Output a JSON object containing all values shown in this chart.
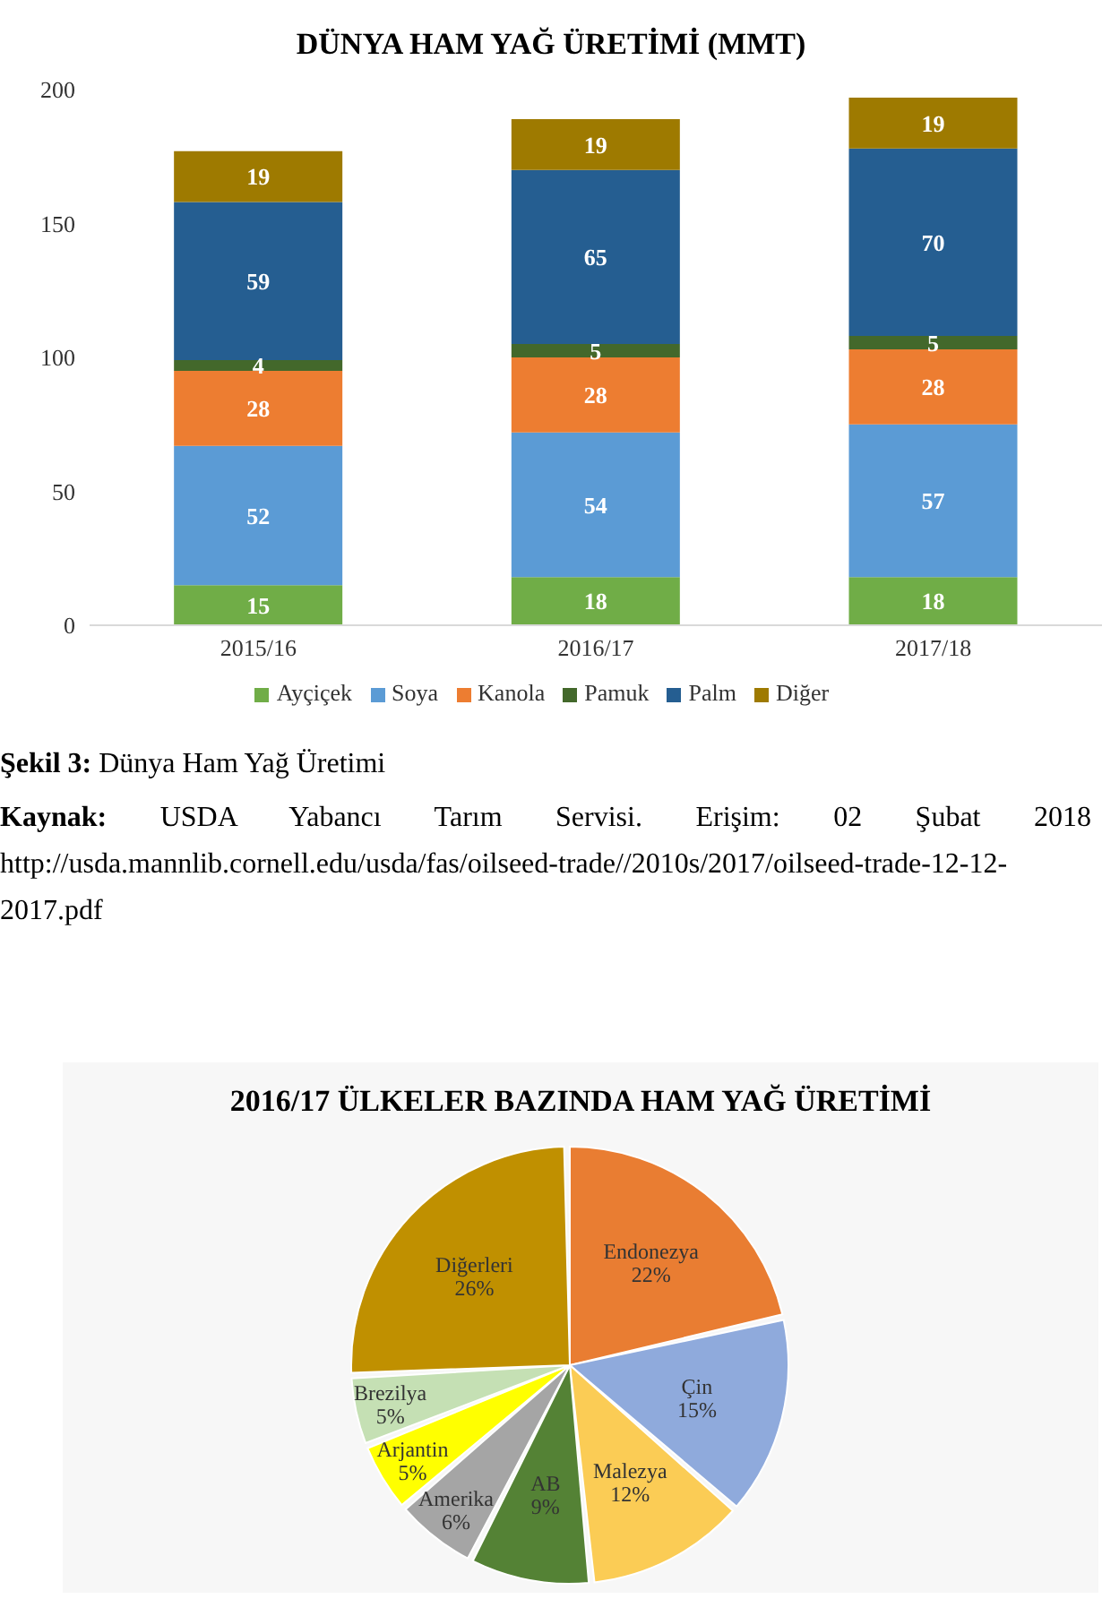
{
  "chart_data": [
    {
      "type": "bar",
      "title": "DÜNYA HAM YAĞ ÜRETİMİ (MMT)",
      "categories": [
        "2015/16",
        "2016/17",
        "2017/18"
      ],
      "stacked": true,
      "series": [
        {
          "name": "Ayçiçek",
          "color": "#70ad47",
          "values": [
            15,
            18,
            18
          ]
        },
        {
          "name": "Soya",
          "color": "#5b9bd5",
          "values": [
            52,
            54,
            57
          ]
        },
        {
          "name": "Kanola",
          "color": "#ed7d31",
          "values": [
            28,
            28,
            28
          ]
        },
        {
          "name": "Pamuk",
          "color": "#43682b",
          "values": [
            4,
            5,
            5
          ]
        },
        {
          "name": "Palm",
          "color": "#255e91",
          "values": [
            59,
            65,
            70
          ]
        },
        {
          "name": "Diğer",
          "color": "#9e7a00",
          "values": [
            19,
            19,
            19
          ]
        }
      ],
      "ylim": [
        0,
        200
      ],
      "yticks": [
        0,
        50,
        100,
        150,
        200
      ],
      "grid": false,
      "legend": "bottom",
      "data_labels": true,
      "annotations": [
        "Şekil 3: Dünya Ham Yağ Üretimi",
        "Kaynak: USDA Yabancı Tarım Servisi. Erişim: 02 Şubat 2018 http://usda.mannlib.cornell.edu/usda/fas/oilseed-trade//2010s/2017/oilseed-trade-12-12-2017.pdf"
      ]
    },
    {
      "type": "pie",
      "title": "2016/17 ÜLKELER BAZINDA HAM YAĞ ÜRETİMİ",
      "categories": [
        "Endonezya",
        "Çin",
        "Malezya",
        "AB",
        "Amerika",
        "Arjantin",
        "Brezilya",
        "Diğerleri"
      ],
      "values": [
        22,
        15,
        12,
        9,
        6,
        5,
        5,
        26
      ],
      "colors": [
        "#e97d32",
        "#8faadc",
        "#fbcc55",
        "#548235",
        "#a5a5a5",
        "#ffff00",
        "#c5e0b4",
        "#c09000"
      ],
      "value_labels": [
        "22%",
        "15%",
        "12%",
        "9%",
        "6%",
        "5%",
        "5%",
        "26%"
      ]
    }
  ]
}
